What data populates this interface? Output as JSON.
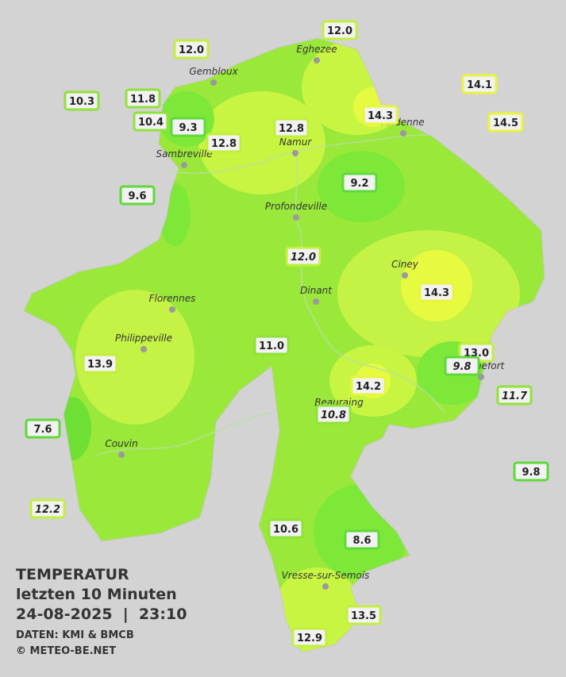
{
  "title": {
    "line1": "TEMPERATUR",
    "line2": "letzten 10 Minuten",
    "line3": "24-08-2025  |  23:10",
    "source": "DATEN: KMI & BMCB",
    "copyright": "© METEO-BE.NET"
  },
  "cities": [
    "Eghezee",
    "Gembloux",
    "Andenne",
    "Namur",
    "Sambreville",
    "Profondeville",
    "Ciney",
    "Dinant",
    "Florennes",
    "Philippeville",
    "Rochefort",
    "Beauraing",
    "Couvin",
    "Vresse-sur-Semois"
  ],
  "stations": [
    "12.0",
    "12.0",
    "10.3",
    "11.8",
    "10.4",
    "9.3",
    "12.8",
    "12.8",
    "14.1",
    "14.3",
    "14.5",
    "9.2",
    "9.6",
    "12.0",
    "14.3",
    "11.0",
    "13.0",
    "9.8",
    "13.9",
    "14.2",
    "11.7",
    "10.8",
    "7.6",
    "9.8",
    "12.2",
    "10.6",
    "8.6",
    "13.5",
    "12.9"
  ]
}
